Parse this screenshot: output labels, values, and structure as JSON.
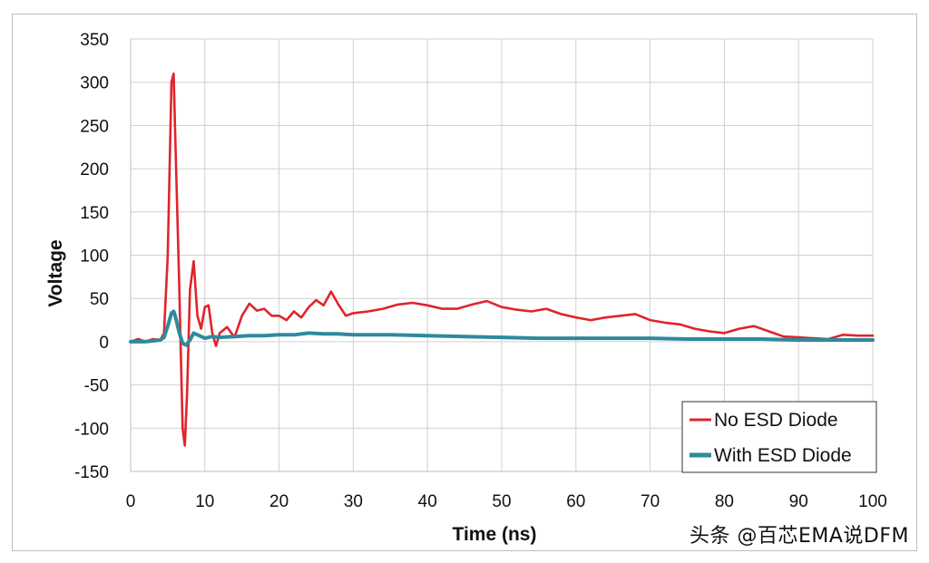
{
  "chart_data": {
    "type": "line",
    "title": "",
    "xlabel": "Time (ns)",
    "ylabel": "Voltage",
    "xlim": [
      0,
      100
    ],
    "ylim": [
      -150,
      350
    ],
    "x_ticks": [
      "0",
      "10",
      "20",
      "30",
      "40",
      "50",
      "60",
      "70",
      "80",
      "90",
      "100"
    ],
    "y_ticks": [
      "350",
      "300",
      "250",
      "200",
      "150",
      "100",
      "50",
      "0",
      "-50",
      "-100",
      "-150"
    ],
    "grid": true,
    "legend_position": "bottom-right",
    "series": [
      {
        "name": "No ESD Diode",
        "color": "#e0242b",
        "x": [
          0,
          1,
          2,
          3,
          4,
          4.5,
          5,
          5.5,
          5.8,
          6,
          6.5,
          7,
          7.3,
          7.6,
          8,
          8.5,
          9,
          9.5,
          10,
          10.5,
          11,
          11.5,
          12,
          13,
          14,
          15,
          16,
          17,
          18,
          19,
          20,
          21,
          22,
          23,
          24,
          25,
          26,
          27,
          28,
          29,
          30,
          32,
          34,
          36,
          38,
          40,
          42,
          44,
          46,
          48,
          50,
          52,
          54,
          56,
          58,
          60,
          62,
          64,
          66,
          68,
          70,
          72,
          74,
          76,
          78,
          80,
          82,
          84,
          86,
          88,
          90,
          92,
          94,
          96,
          98,
          100
        ],
        "y": [
          0,
          3,
          0,
          3,
          2,
          10,
          100,
          300,
          310,
          240,
          80,
          -100,
          -120,
          -60,
          60,
          93,
          30,
          15,
          40,
          42,
          10,
          -5,
          10,
          17,
          5,
          30,
          44,
          36,
          38,
          30,
          30,
          25,
          35,
          28,
          40,
          48,
          42,
          58,
          43,
          30,
          33,
          35,
          38,
          43,
          45,
          42,
          38,
          38,
          43,
          47,
          40,
          37,
          35,
          38,
          32,
          28,
          25,
          28,
          30,
          32,
          25,
          22,
          20,
          15,
          12,
          10,
          15,
          18,
          12,
          6,
          5,
          4,
          3,
          8,
          7,
          7
        ]
      },
      {
        "name": "With ESD Diode",
        "color": "#2e8a9c",
        "x": [
          0,
          2,
          4,
          4.5,
          5,
          5.5,
          5.8,
          6,
          6.5,
          7,
          7.5,
          8,
          8.5,
          9,
          10,
          11,
          12,
          14,
          16,
          18,
          20,
          22,
          24,
          26,
          28,
          30,
          35,
          40,
          45,
          50,
          55,
          60,
          65,
          70,
          75,
          80,
          85,
          90,
          95,
          100
        ],
        "y": [
          0,
          0,
          2,
          5,
          18,
          33,
          35,
          30,
          12,
          -2,
          -4,
          2,
          10,
          8,
          4,
          6,
          5,
          6,
          7,
          7,
          8,
          8,
          10,
          9,
          9,
          8,
          8,
          7,
          6,
          5,
          4,
          4,
          4,
          4,
          3,
          3,
          3,
          2,
          2,
          2
        ]
      }
    ]
  },
  "watermark": "头条 @百芯EMA说DFM"
}
